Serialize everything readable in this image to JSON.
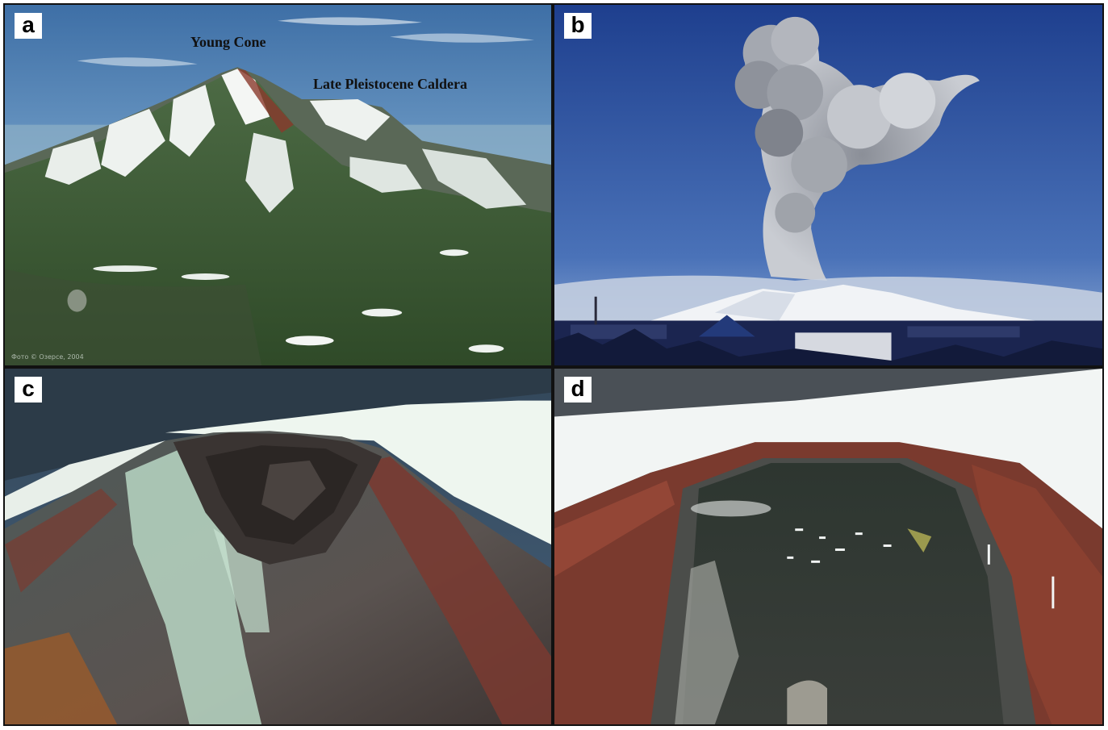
{
  "figure": {
    "panels": [
      {
        "label": "a",
        "subject": "snow-streaked volcano with young cone and caldera rim",
        "annotations": {
          "young_cone": "Young Cone",
          "caldera": "Late Pleistocene Caldera"
        },
        "credit": "Фото © Озерсе, 2004"
      },
      {
        "label": "b",
        "subject": "eruption ash plume rising above a town and snowy volcano"
      },
      {
        "label": "c",
        "subject": "close aerial view of summit crater with altered greenish and red slopes"
      },
      {
        "label": "d",
        "subject": "summit crater rim with dark lava floor, red scoria walls and snow"
      }
    ]
  },
  "colors": {
    "sky_a": "#6b9ac4",
    "sky_b": "#2c4f9e",
    "snow": "#f4f6f4",
    "green_slope": "#4f6e3a",
    "red_scoria": "#8a3a2c",
    "dark_lava": "#2b302c",
    "altered_rock": "#b9d7c4"
  }
}
